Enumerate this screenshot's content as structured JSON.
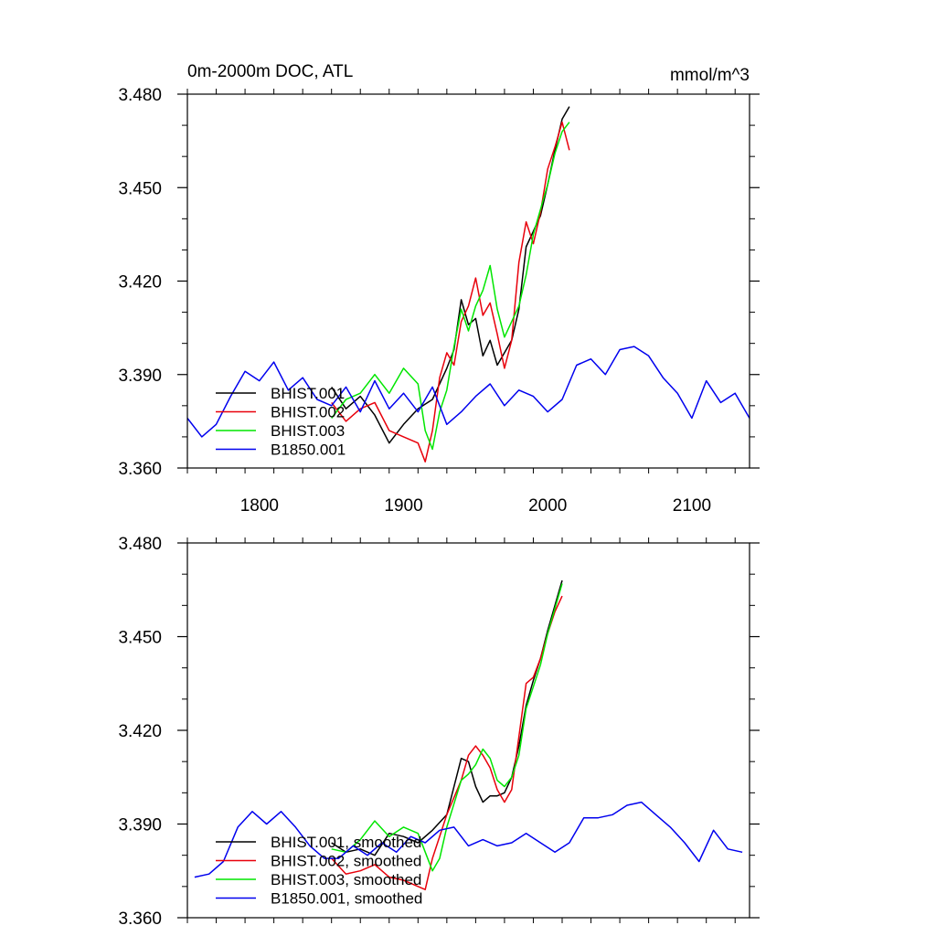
{
  "header": {
    "title_left": "0m-2000m DOC, ATL",
    "title_right": "mmol/m^3"
  },
  "colors": {
    "BHIST.001": "#000000",
    "BHIST.002": "#e8000b",
    "BHIST.003": "#00e600",
    "B1850.001": "#0000ee"
  },
  "chart_data": [
    {
      "type": "line",
      "title": "0m-2000m DOC, ATL",
      "units": "mmol/m^3",
      "xlim": [
        1750,
        2140
      ],
      "ylim": [
        3.36,
        3.48
      ],
      "xticks": [
        1800,
        1900,
        2000,
        2100
      ],
      "yticks": [
        3.36,
        3.39,
        3.42,
        3.45,
        3.48
      ],
      "ytick_labels": [
        "3.360",
        "3.390",
        "3.420",
        "3.450",
        "3.480"
      ],
      "xtick_labels": [
        "1800",
        "1900",
        "2000",
        "2100"
      ],
      "legend": "bottom-left",
      "series": [
        {
          "name": "BHIST.001",
          "color": "#000000",
          "x": [
            1850,
            1860,
            1870,
            1880,
            1890,
            1900,
            1910,
            1920,
            1930,
            1935,
            1940,
            1945,
            1950,
            1955,
            1960,
            1965,
            1970,
            1975,
            1980,
            1985,
            1990,
            1995,
            2000,
            2005,
            2010,
            2015
          ],
          "y": [
            3.386,
            3.379,
            3.383,
            3.377,
            3.368,
            3.374,
            3.379,
            3.382,
            3.392,
            3.398,
            3.414,
            3.406,
            3.408,
            3.396,
            3.401,
            3.393,
            3.397,
            3.401,
            3.411,
            3.431,
            3.436,
            3.441,
            3.451,
            3.462,
            3.472,
            3.476
          ]
        },
        {
          "name": "BHIST.002",
          "color": "#e8000b",
          "x": [
            1850,
            1860,
            1870,
            1880,
            1890,
            1900,
            1910,
            1915,
            1920,
            1925,
            1930,
            1935,
            1940,
            1945,
            1950,
            1955,
            1960,
            1965,
            1970,
            1975,
            1980,
            1985,
            1990,
            1995,
            2000,
            2005,
            2010,
            2015
          ],
          "y": [
            3.381,
            3.375,
            3.379,
            3.381,
            3.372,
            3.37,
            3.368,
            3.362,
            3.372,
            3.389,
            3.397,
            3.393,
            3.407,
            3.412,
            3.421,
            3.409,
            3.413,
            3.403,
            3.392,
            3.401,
            3.426,
            3.439,
            3.432,
            3.442,
            3.456,
            3.463,
            3.471,
            3.462
          ]
        },
        {
          "name": "BHIST.003",
          "color": "#00e600",
          "x": [
            1850,
            1860,
            1870,
            1880,
            1890,
            1900,
            1910,
            1915,
            1920,
            1925,
            1930,
            1935,
            1940,
            1945,
            1950,
            1955,
            1960,
            1965,
            1970,
            1975,
            1980,
            1985,
            1990,
            1995,
            2000,
            2005,
            2010,
            2015
          ],
          "y": [
            3.376,
            3.382,
            3.384,
            3.39,
            3.384,
            3.392,
            3.387,
            3.372,
            3.366,
            3.378,
            3.385,
            3.399,
            3.411,
            3.404,
            3.412,
            3.417,
            3.425,
            3.411,
            3.402,
            3.407,
            3.412,
            3.422,
            3.435,
            3.443,
            3.451,
            3.461,
            3.468,
            3.471
          ]
        },
        {
          "name": "B1850.001",
          "color": "#0000ee",
          "x": [
            1750,
            1760,
            1770,
            1780,
            1790,
            1800,
            1810,
            1820,
            1830,
            1840,
            1850,
            1860,
            1870,
            1880,
            1890,
            1900,
            1910,
            1920,
            1930,
            1940,
            1950,
            1960,
            1970,
            1980,
            1990,
            2000,
            2010,
            2020,
            2030,
            2040,
            2050,
            2060,
            2070,
            2080,
            2090,
            2100,
            2110,
            2120,
            2130,
            2140
          ],
          "y": [
            3.376,
            3.37,
            3.374,
            3.383,
            3.391,
            3.388,
            3.394,
            3.385,
            3.389,
            3.382,
            3.38,
            3.386,
            3.378,
            3.388,
            3.379,
            3.384,
            3.378,
            3.386,
            3.374,
            3.378,
            3.383,
            3.387,
            3.38,
            3.385,
            3.383,
            3.378,
            3.382,
            3.393,
            3.395,
            3.39,
            3.398,
            3.399,
            3.396,
            3.389,
            3.384,
            3.376,
            3.388,
            3.381,
            3.384,
            3.376
          ]
        }
      ]
    },
    {
      "type": "line",
      "xlim": [
        1750,
        2140
      ],
      "ylim": [
        3.36,
        3.48
      ],
      "xticks": [
        1800,
        1900,
        2000,
        2100
      ],
      "yticks": [
        3.36,
        3.39,
        3.42,
        3.45,
        3.48
      ],
      "ytick_labels": [
        "3.360",
        "3.390",
        "3.420",
        "3.450",
        "3.480"
      ],
      "legend": "bottom-left",
      "series": [
        {
          "name": "BHIST.001, smoothed",
          "color": "#000000",
          "x": [
            1850,
            1860,
            1870,
            1880,
            1890,
            1900,
            1910,
            1920,
            1930,
            1940,
            1945,
            1950,
            1955,
            1960,
            1965,
            1970,
            1975,
            1980,
            1985,
            1990,
            1995,
            2000,
            2005,
            2010
          ],
          "y": [
            3.384,
            3.381,
            3.382,
            3.38,
            3.387,
            3.386,
            3.384,
            3.388,
            3.393,
            3.411,
            3.41,
            3.402,
            3.397,
            3.399,
            3.399,
            3.4,
            3.405,
            3.415,
            3.428,
            3.436,
            3.443,
            3.452,
            3.46,
            3.468
          ]
        },
        {
          "name": "BHIST.002, smoothed",
          "color": "#e8000b",
          "x": [
            1850,
            1860,
            1870,
            1880,
            1890,
            1900,
            1910,
            1915,
            1920,
            1930,
            1940,
            1945,
            1950,
            1955,
            1960,
            1965,
            1970,
            1975,
            1980,
            1985,
            1990,
            1995,
            2000,
            2005,
            2010
          ],
          "y": [
            3.379,
            3.374,
            3.375,
            3.377,
            3.373,
            3.372,
            3.37,
            3.369,
            3.379,
            3.393,
            3.404,
            3.412,
            3.415,
            3.412,
            3.408,
            3.401,
            3.397,
            3.401,
            3.418,
            3.435,
            3.437,
            3.443,
            3.451,
            3.458,
            3.463
          ]
        },
        {
          "name": "BHIST.003, smoothed",
          "color": "#00e600",
          "x": [
            1850,
            1860,
            1870,
            1880,
            1890,
            1900,
            1910,
            1920,
            1925,
            1930,
            1940,
            1945,
            1950,
            1955,
            1960,
            1965,
            1970,
            1975,
            1980,
            1985,
            1990,
            1995,
            2000,
            2005,
            2010
          ],
          "y": [
            3.382,
            3.381,
            3.385,
            3.391,
            3.386,
            3.389,
            3.387,
            3.375,
            3.379,
            3.389,
            3.404,
            3.406,
            3.409,
            3.414,
            3.411,
            3.404,
            3.402,
            3.405,
            3.412,
            3.427,
            3.434,
            3.441,
            3.451,
            3.459,
            3.467
          ]
        },
        {
          "name": "B1850.001, smoothed",
          "color": "#0000ee",
          "x": [
            1755,
            1765,
            1775,
            1785,
            1795,
            1805,
            1815,
            1825,
            1835,
            1845,
            1855,
            1865,
            1875,
            1885,
            1895,
            1905,
            1915,
            1925,
            1935,
            1945,
            1955,
            1965,
            1975,
            1985,
            1995,
            2005,
            2015,
            2025,
            2035,
            2045,
            2055,
            2065,
            2075,
            2085,
            2095,
            2105,
            2115,
            2125,
            2135
          ],
          "y": [
            3.373,
            3.374,
            3.378,
            3.389,
            3.394,
            3.39,
            3.394,
            3.389,
            3.383,
            3.379,
            3.379,
            3.383,
            3.38,
            3.384,
            3.381,
            3.386,
            3.384,
            3.388,
            3.389,
            3.383,
            3.385,
            3.383,
            3.384,
            3.387,
            3.384,
            3.381,
            3.384,
            3.392,
            3.392,
            3.393,
            3.396,
            3.397,
            3.393,
            3.389,
            3.384,
            3.378,
            3.388,
            3.382,
            3.381
          ]
        }
      ]
    }
  ]
}
